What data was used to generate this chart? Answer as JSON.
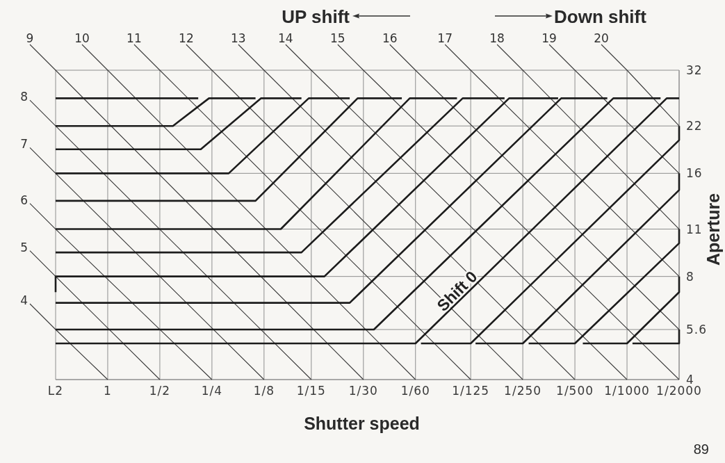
{
  "chart_data": {
    "type": "line",
    "xlabel": "Shutter speed",
    "ylabel": "Aperture",
    "annotations": [
      "UP shift",
      "Down shift",
      {
        "text": "Shift 0",
        "x": 0.0087,
        "y": 6.9
      },
      "89"
    ],
    "log": "xy",
    "xlim": [
      2,
      0.0005
    ],
    "xticks": [
      {
        "value": 2,
        "label": "L2"
      },
      1,
      {
        "value": 0.5,
        "label": "1/2"
      },
      {
        "value": 0.25,
        "label": "1/4"
      },
      {
        "value": 0.125,
        "label": "1/8"
      },
      {
        "value": 0.06667,
        "label": "1/15"
      },
      {
        "value": 0.03333,
        "label": "1/30"
      },
      {
        "value": 0.01667,
        "label": "1/60"
      },
      {
        "value": 0.008,
        "label": "1/125"
      },
      {
        "value": 0.004,
        "label": "1/250"
      },
      {
        "value": 0.002,
        "label": "1/500"
      },
      {
        "value": 0.001,
        "label": "1/1000"
      },
      {
        "value": 0.0005,
        "label": "1/2000"
      }
    ],
    "ylim": [
      4,
      32
    ],
    "yticks": [
      4,
      5.6,
      8,
      11,
      16,
      22,
      32
    ],
    "grid": true,
    "series": [
      {
        "name": "4",
        "color": "#3a3a3a",
        "x": [
          2,
          1
        ],
        "values": [
          5.6,
          4
        ]
      },
      {
        "name": "5",
        "color": "#3a3a3a",
        "x": [
          2,
          0.5
        ],
        "values": [
          8,
          4
        ]
      },
      {
        "name": "6",
        "color": "#3a3a3a",
        "x": [
          2,
          0.25
        ],
        "values": [
          11,
          4
        ]
      },
      {
        "name": "7",
        "color": "#3a3a3a",
        "x": [
          2,
          0.125
        ],
        "values": [
          16,
          4
        ]
      },
      {
        "name": "8",
        "color": "#3a3a3a",
        "x": [
          2,
          0.06667
        ],
        "values": [
          22,
          4
        ]
      },
      {
        "name": "9",
        "color": "#3a3a3a",
        "x": [
          2,
          0.03333
        ],
        "values": [
          32,
          4
        ]
      },
      {
        "name": "10",
        "color": "#3a3a3a",
        "x": [
          1,
          0.01667
        ],
        "values": [
          32,
          4
        ]
      },
      {
        "name": "11",
        "color": "#3a3a3a",
        "x": [
          0.5,
          0.008
        ],
        "values": [
          32,
          4
        ]
      },
      {
        "name": "12",
        "color": "#3a3a3a",
        "x": [
          0.25,
          0.004
        ],
        "values": [
          32,
          4
        ]
      },
      {
        "name": "13",
        "color": "#3a3a3a",
        "x": [
          0.125,
          0.002
        ],
        "values": [
          32,
          4
        ]
      },
      {
        "name": "14",
        "color": "#3a3a3a",
        "x": [
          0.06667,
          0.001
        ],
        "values": [
          32,
          4
        ]
      },
      {
        "name": "15",
        "color": "#3a3a3a",
        "x": [
          0.03333,
          0.0005
        ],
        "values": [
          32,
          4
        ]
      },
      {
        "name": "16",
        "color": "#3a3a3a",
        "x": [
          0.01667,
          0.0005
        ],
        "values": [
          32,
          5.6
        ]
      },
      {
        "name": "17",
        "color": "#3a3a3a",
        "x": [
          0.008,
          0.0005
        ],
        "values": [
          32,
          8
        ]
      },
      {
        "name": "18",
        "color": "#3a3a3a",
        "x": [
          0.004,
          0.0005
        ],
        "values": [
          32,
          11
        ]
      },
      {
        "name": "19",
        "color": "#3a3a3a",
        "x": [
          0.002,
          0.0005
        ],
        "values": [
          32,
          16
        ]
      },
      {
        "name": "20",
        "color": "#3a3a3a",
        "x": [
          0.001,
          0.0005
        ],
        "values": [
          32,
          22
        ]
      },
      {
        "color": "#1c1c1c",
        "x": [
          2,
          0.3
        ],
        "values": [
          26.5,
          26.5
        ]
      },
      {
        "color": "#1c1c1c",
        "x": [
          2,
          0.42,
          0.26,
          0.14
        ],
        "values": [
          22,
          22,
          26.5,
          26.5
        ]
      },
      {
        "color": "#1c1c1c",
        "x": [
          2,
          0.29,
          0.13,
          0.076
        ],
        "values": [
          18.8,
          18.8,
          26.5,
          26.5
        ]
      },
      {
        "color": "#1c1c1c",
        "x": [
          2,
          0.2,
          0.069,
          0.04
        ],
        "values": [
          16,
          16,
          26.5,
          26.5
        ]
      },
      {
        "color": "#1c1c1c",
        "x": [
          2,
          0.14,
          0.036,
          0.02
        ],
        "values": [
          13.3,
          13.3,
          26.5,
          26.5
        ]
      },
      {
        "color": "#1c1c1c",
        "x": [
          2,
          0.1,
          0.018,
          0.0096
        ],
        "values": [
          11,
          11,
          26.5,
          26.5
        ]
      },
      {
        "color": "#1c1c1c",
        "x": [
          2,
          0.076,
          0.0089,
          0.0051
        ],
        "values": [
          9.4,
          9.4,
          26.5,
          26.5
        ]
      },
      {
        "color": "#1c1c1c",
        "x": [
          2,
          2,
          0.056,
          0.0048,
          0.0025
        ],
        "values": [
          7.2,
          8,
          8,
          26.5,
          26.5
        ]
      },
      {
        "color": "#1c1c1c",
        "x": [
          2,
          0.04,
          0.0024,
          0.0013
        ],
        "values": [
          6.7,
          6.7,
          26.5,
          26.5
        ]
      },
      {
        "color": "#1c1c1c",
        "x": [
          2,
          0.029,
          0.0012,
          0.00064
        ],
        "values": [
          5.6,
          5.6,
          26.5,
          26.5
        ]
      },
      {
        "color": "#1c1c1c",
        "x": [
          2,
          0.01667,
          0.00059,
          0.0005
        ],
        "values": [
          5.1,
          5.1,
          26.5,
          26.5
        ]
      },
      {
        "color": "#1c1c1c",
        "x": [
          0.0155,
          0.008,
          0.0005,
          0.0005
        ],
        "values": [
          5.1,
          5.1,
          20,
          22
        ]
      },
      {
        "color": "#1c1c1c",
        "x": [
          0.0075,
          0.004,
          0.0005,
          0.0005
        ],
        "values": [
          5.1,
          5.1,
          14.3,
          16
        ]
      },
      {
        "color": "#1c1c1c",
        "x": [
          0.0037,
          0.002,
          0.0005,
          0.0005
        ],
        "values": [
          5.1,
          5.1,
          10,
          11
        ]
      },
      {
        "color": "#1c1c1c",
        "x": [
          0.0018,
          0.001,
          0.0005,
          0.0005
        ],
        "values": [
          5.1,
          5.1,
          7.2,
          8
        ]
      },
      {
        "color": "#1c1c1c",
        "x": [
          0.00093,
          0.0005,
          0.0005
        ],
        "values": [
          5.1,
          5.1,
          5.6
        ]
      }
    ]
  }
}
